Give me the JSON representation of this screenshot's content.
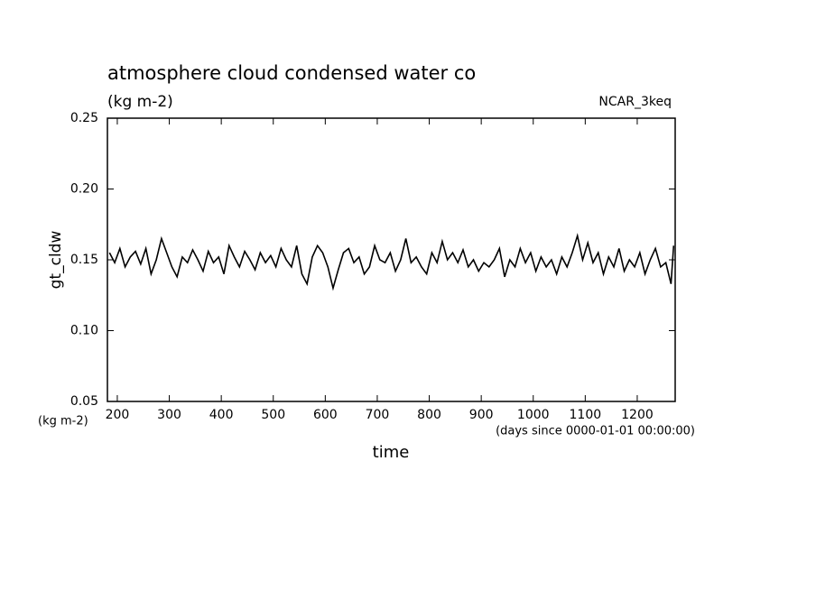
{
  "chart_data": {
    "type": "line",
    "title": "atmosphere cloud condensed water co",
    "subtitle": "(kg m-2)",
    "label": "NCAR_3keq",
    "ylabel": "gt_cldw",
    "yunit": "(kg m-2)",
    "xlabel": "time",
    "xunit": "(days since 0000-01-01 00:00:00)",
    "xlim": [
      181,
      1273
    ],
    "ylim": [
      0.05,
      0.25
    ],
    "xticks": [
      200,
      300,
      400,
      500,
      600,
      700,
      800,
      900,
      1000,
      1100,
      1200
    ],
    "yticks": [
      {
        "value": 0.05,
        "label": "0.05"
      },
      {
        "value": 0.1,
        "label": "0.10"
      },
      {
        "value": 0.15,
        "label": "0.15"
      },
      {
        "value": 0.2,
        "label": "0.20"
      },
      {
        "value": 0.25,
        "label": "0.25"
      }
    ],
    "series": [
      {
        "color": "#000000",
        "x": [
          185,
          195,
          205,
          215,
          225,
          235,
          245,
          255,
          265,
          275,
          285,
          295,
          305,
          315,
          325,
          335,
          345,
          355,
          365,
          375,
          385,
          395,
          405,
          415,
          425,
          435,
          445,
          455,
          465,
          475,
          485,
          495,
          505,
          515,
          525,
          535,
          545,
          555,
          565,
          575,
          585,
          595,
          605,
          615,
          625,
          635,
          645,
          655,
          665,
          675,
          685,
          695,
          705,
          715,
          725,
          735,
          745,
          755,
          765,
          775,
          785,
          795,
          805,
          815,
          825,
          835,
          845,
          855,
          865,
          875,
          885,
          895,
          905,
          915,
          925,
          935,
          945,
          955,
          965,
          975,
          985,
          995,
          1005,
          1015,
          1025,
          1035,
          1045,
          1055,
          1065,
          1075,
          1085,
          1095,
          1105,
          1115,
          1125,
          1135,
          1145,
          1155,
          1165,
          1175,
          1185,
          1195,
          1205,
          1215,
          1225,
          1235,
          1245,
          1255,
          1265,
          1270
        ],
        "values": [
          0.155,
          0.148,
          0.158,
          0.145,
          0.152,
          0.156,
          0.147,
          0.158,
          0.14,
          0.15,
          0.165,
          0.155,
          0.145,
          0.138,
          0.152,
          0.148,
          0.157,
          0.15,
          0.142,
          0.156,
          0.148,
          0.152,
          0.14,
          0.16,
          0.152,
          0.145,
          0.156,
          0.15,
          0.143,
          0.155,
          0.148,
          0.153,
          0.145,
          0.158,
          0.15,
          0.145,
          0.16,
          0.14,
          0.133,
          0.152,
          0.16,
          0.155,
          0.145,
          0.13,
          0.143,
          0.155,
          0.158,
          0.148,
          0.152,
          0.14,
          0.145,
          0.16,
          0.15,
          0.148,
          0.155,
          0.142,
          0.15,
          0.165,
          0.148,
          0.152,
          0.145,
          0.14,
          0.155,
          0.148,
          0.163,
          0.15,
          0.155,
          0.148,
          0.157,
          0.145,
          0.15,
          0.142,
          0.148,
          0.145,
          0.15,
          0.158,
          0.138,
          0.15,
          0.145,
          0.158,
          0.148,
          0.155,
          0.142,
          0.152,
          0.145,
          0.15,
          0.14,
          0.152,
          0.145,
          0.155,
          0.167,
          0.15,
          0.162,
          0.148,
          0.155,
          0.14,
          0.152,
          0.145,
          0.158,
          0.142,
          0.15,
          0.145,
          0.155,
          0.14,
          0.15,
          0.158,
          0.145,
          0.148,
          0.133,
          0.16
        ]
      }
    ]
  }
}
